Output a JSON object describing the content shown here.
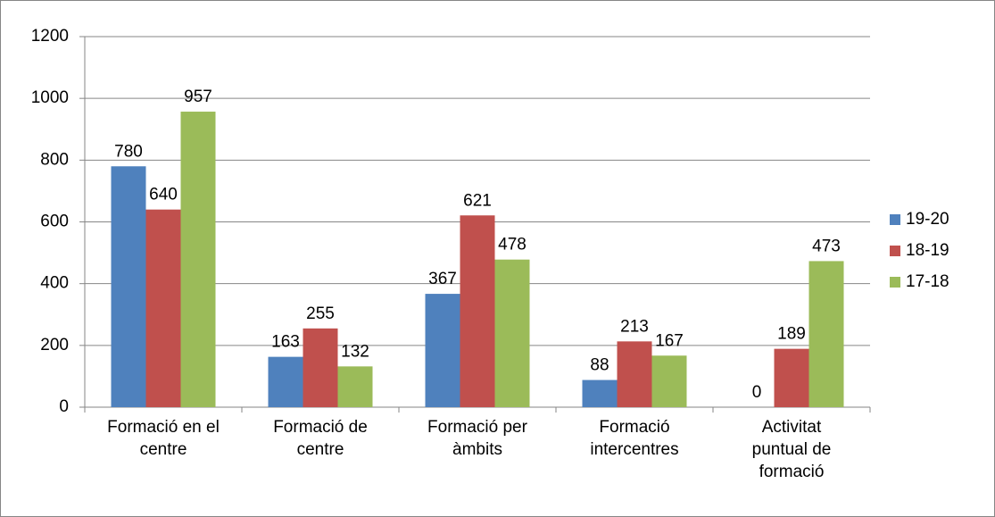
{
  "chart_data": {
    "type": "bar",
    "categories": [
      "Formació en el\ncentre",
      "Formació de\ncentre",
      "Formació per\nàmbits",
      "Formació\nintercentres",
      "Activitat\npuntual de\nformació"
    ],
    "series": [
      {
        "name": "19-20",
        "color": "#4f81bd",
        "values": [
          780,
          163,
          367,
          88,
          0
        ]
      },
      {
        "name": "18-19",
        "color": "#c0504d",
        "values": [
          640,
          255,
          621,
          213,
          189
        ]
      },
      {
        "name": "17-18",
        "color": "#9bbb59",
        "values": [
          957,
          132,
          478,
          167,
          473
        ]
      }
    ],
    "ylim": [
      0,
      1200
    ],
    "yticks": [
      0,
      200,
      400,
      600,
      800,
      1000,
      1200
    ],
    "grid": true,
    "legend": "right"
  }
}
